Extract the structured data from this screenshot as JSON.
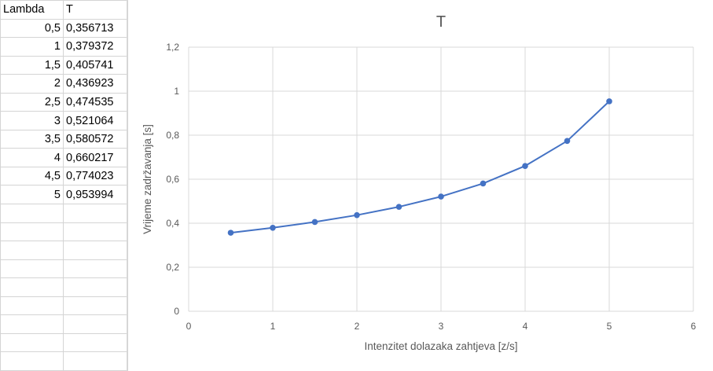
{
  "sheet": {
    "headers": [
      "Lambda",
      "T"
    ],
    "rows": [
      [
        "0,5",
        "0,356713"
      ],
      [
        "1",
        "0,379372"
      ],
      [
        "1,5",
        "0,405741"
      ],
      [
        "2",
        "0,436923"
      ],
      [
        "2,5",
        "0,474535"
      ],
      [
        "3",
        "0,521064"
      ],
      [
        "3,5",
        "0,580572"
      ],
      [
        "4",
        "0,660217"
      ],
      [
        "4,5",
        "0,774023"
      ],
      [
        "5",
        "0,953994"
      ]
    ]
  },
  "chart_data": {
    "type": "line",
    "title": "T",
    "xlabel": "Intenzitet dolazaka zahtjeva [z/s]",
    "ylabel": "Vrijeme zadržavanja [s]",
    "xlim": [
      0,
      6
    ],
    "ylim": [
      0,
      1.2
    ],
    "x_ticks": [
      "0",
      "1",
      "2",
      "3",
      "4",
      "5",
      "6"
    ],
    "y_ticks": [
      "0",
      "0,2",
      "0,4",
      "0,6",
      "0,8",
      "1",
      "1,2"
    ],
    "grid": true,
    "line_color": "#4472c4",
    "series": [
      {
        "x": [
          0.5,
          1,
          1.5,
          2,
          2.5,
          3,
          3.5,
          4,
          4.5,
          5
        ],
        "values": [
          0.356713,
          0.379372,
          0.405741,
          0.436923,
          0.474535,
          0.521064,
          0.580572,
          0.660217,
          0.774023,
          0.953994
        ]
      }
    ]
  }
}
